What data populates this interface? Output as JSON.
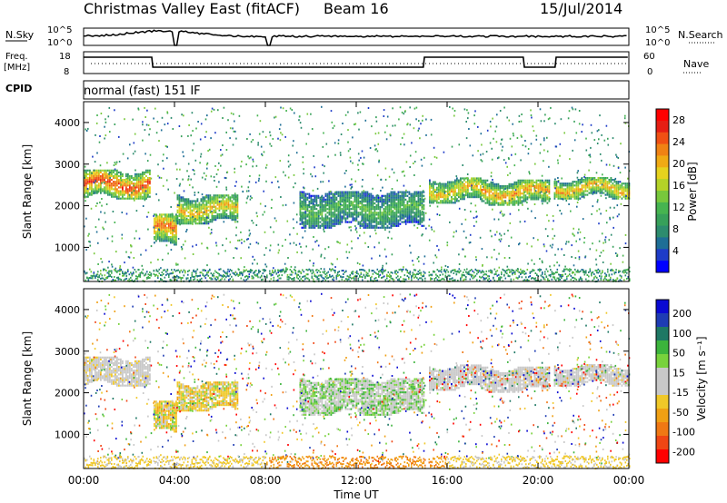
{
  "header": {
    "title": "Christmas Valley East (fitACF)",
    "beam": "Beam 16",
    "date": "15/Jul/2014",
    "params_label": "normal (fast) 151 IF",
    "cpid_label": "CPID"
  },
  "status_panels": {
    "nsky_label": "N.Sky",
    "nsearch_label": "N.Search",
    "noise_ticks_left": [
      "10^5",
      "10^0"
    ],
    "noise_ticks_right": [
      "10^5",
      "10^0"
    ],
    "freq_label": "Freq.",
    "freq_unit": "[MHz]",
    "freq_ticks": [
      "18",
      "8"
    ],
    "nave_label": "Nave",
    "nave_ticks": [
      "60",
      "0"
    ]
  },
  "chart_data": [
    {
      "type": "heatmap",
      "panel": "power",
      "ylabel": "Slant Range [km]",
      "y_ticks": [
        "4000",
        "3000",
        "2000",
        "1000"
      ],
      "ylim": [
        180,
        4500
      ],
      "colorbar_label": "Power [dB]",
      "colorbar_ticks": [
        "28",
        "24",
        "20",
        "16",
        "12",
        "8",
        "4"
      ],
      "colorbar_range": [
        0,
        30
      ],
      "colors": [
        "#0000ff",
        "#1e3cc8",
        "#1e6e96",
        "#2d8c6e",
        "#37a05a",
        "#46b450",
        "#78c83c",
        "#b4d228",
        "#e6d21e",
        "#f0aa14",
        "#f08214",
        "#f05014",
        "#e61e14",
        "#ff0000"
      ],
      "bands": [
        {
          "t": [
            0.0,
            2.9
          ],
          "center": 2500,
          "width": 350,
          "level": 26
        },
        {
          "t": [
            3.0,
            4.1
          ],
          "center": 1400,
          "width": 400,
          "level": 24
        },
        {
          "t": [
            4.1,
            6.8
          ],
          "center": 1900,
          "width": 350,
          "level": 20
        },
        {
          "t": [
            9.5,
            15.0
          ],
          "center": 1900,
          "width": 450,
          "level": 12
        },
        {
          "t": [
            15.2,
            17.5
          ],
          "center": 2350,
          "width": 300,
          "level": 20
        },
        {
          "t": [
            17.5,
            20.5
          ],
          "center": 2300,
          "width": 300,
          "level": 22
        },
        {
          "t": [
            20.7,
            24.0
          ],
          "center": 2400,
          "width": 250,
          "level": 21
        }
      ]
    },
    {
      "type": "heatmap",
      "panel": "velocity",
      "ylabel": "Slant Range [km]",
      "y_ticks": [
        "4000",
        "3000",
        "2000",
        "1000"
      ],
      "ylim": [
        180,
        4500
      ],
      "colorbar_label": "Velocity [m s⁻¹]",
      "colorbar_ticks": [
        "200",
        "100",
        "50",
        "15",
        "-15",
        "-50",
        "-100",
        "-200"
      ],
      "colors": [
        "#0a0ad2",
        "#1e3cb4",
        "#1e7864",
        "#3cb43c",
        "#78d23c",
        "#c8c8c8",
        "#c8c8c8",
        "#f0c828",
        "#f0a014",
        "#f07814",
        "#f04614",
        "#ff0000"
      ],
      "x_ticks": [
        "00:00",
        "04:00",
        "08:00",
        "12:00",
        "16:00",
        "20:00",
        "00:00"
      ],
      "xlabel": "Time UT",
      "xlim": [
        0,
        24
      ]
    }
  ]
}
